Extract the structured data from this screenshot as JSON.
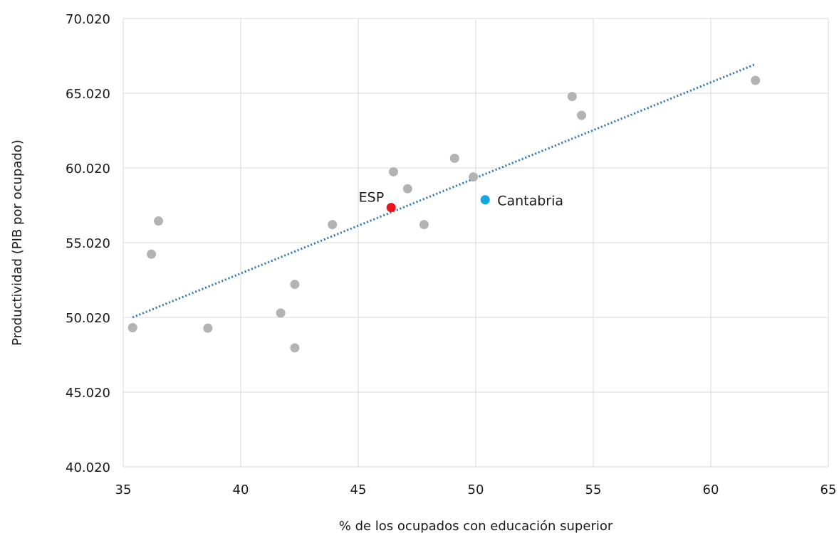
{
  "chart_data": {
    "type": "scatter",
    "xlabel": "% de los ocupados con educación superior",
    "ylabel": "Productividad (PIB por ocupado)",
    "xlim": [
      35,
      65
    ],
    "ylim": [
      40020,
      70020
    ],
    "x_ticks": [
      35,
      40,
      45,
      50,
      55,
      60,
      65
    ],
    "x_tick_labels": [
      "35",
      "40",
      "45",
      "50",
      "55",
      "60",
      "65"
    ],
    "y_ticks": [
      40020,
      45020,
      50020,
      55020,
      60020,
      65020,
      70020
    ],
    "y_tick_labels": [
      "40.020",
      "45.020",
      "50.020",
      "55.020",
      "60.020",
      "65.020",
      "70.020"
    ],
    "grid": true,
    "series": [
      {
        "color": "#b3b3b3",
        "points": [
          {
            "x": 35.4,
            "y": 49330
          },
          {
            "x": 36.2,
            "y": 54250
          },
          {
            "x": 36.5,
            "y": 56470
          },
          {
            "x": 38.6,
            "y": 49300
          },
          {
            "x": 41.7,
            "y": 50310
          },
          {
            "x": 42.3,
            "y": 52230
          },
          {
            "x": 42.3,
            "y": 47980
          },
          {
            "x": 43.9,
            "y": 56230
          },
          {
            "x": 46.5,
            "y": 59760
          },
          {
            "x": 47.1,
            "y": 58630
          },
          {
            "x": 47.8,
            "y": 56230
          },
          {
            "x": 49.1,
            "y": 60670
          },
          {
            "x": 49.9,
            "y": 59420
          },
          {
            "x": 54.1,
            "y": 64800
          },
          {
            "x": 54.5,
            "y": 63540
          },
          {
            "x": 61.9,
            "y": 65880
          }
        ]
      },
      {
        "label": "ESP",
        "color": "#e8151b",
        "points": [
          {
            "x": 46.4,
            "y": 57370
          }
        ]
      },
      {
        "label": "Cantabria",
        "color": "#12a7e0",
        "points": [
          {
            "x": 50.4,
            "y": 57890
          }
        ]
      }
    ],
    "trendline": {
      "style": "dotted",
      "color": "#2e75b6",
      "from": {
        "x": 35.4,
        "y": 50020
      },
      "to": {
        "x": 61.9,
        "y": 66960
      }
    }
  }
}
